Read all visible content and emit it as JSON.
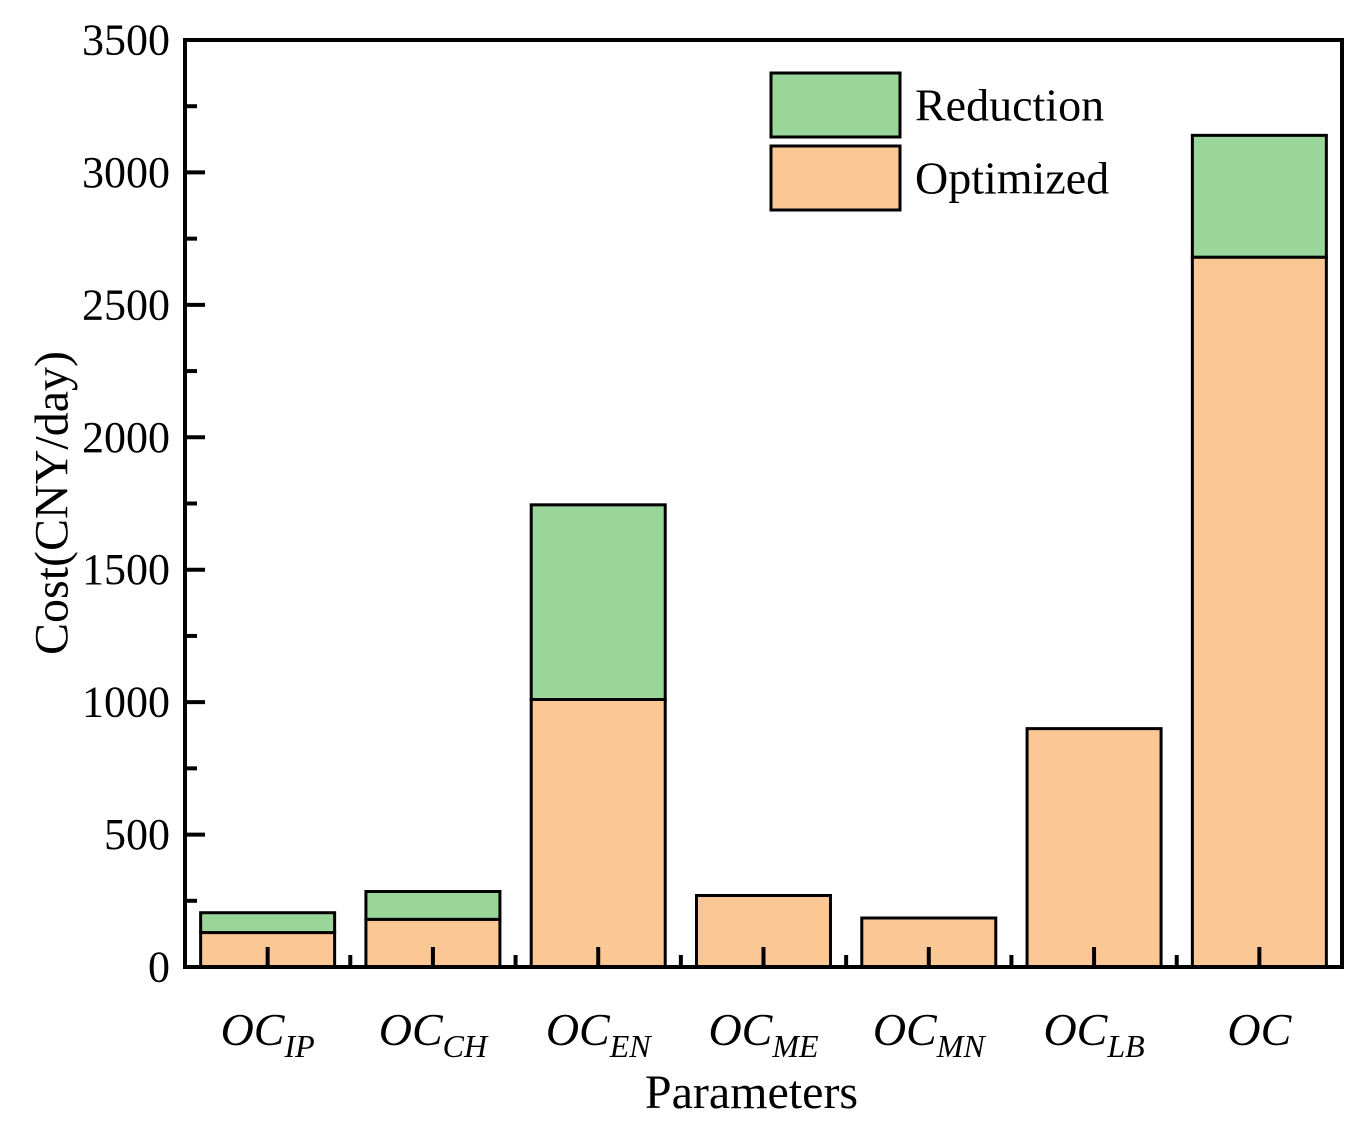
{
  "chart_data": {
    "type": "bar",
    "stacked": true,
    "title": "",
    "xlabel": "Parameters",
    "ylabel": "Cost(CNY/day)",
    "ylim": [
      0,
      3500
    ],
    "y_major_step": 500,
    "y_minor_step": 250,
    "y_tick_labels": [
      "0",
      "500",
      "1000",
      "1500",
      "2000",
      "2500",
      "3000",
      "3500"
    ],
    "grid": "off",
    "categories": [
      {
        "id": "OC_IP",
        "base": "OC",
        "sub": "IP"
      },
      {
        "id": "OC_CH",
        "base": "OC",
        "sub": "CH"
      },
      {
        "id": "OC_EN",
        "base": "OC",
        "sub": "EN"
      },
      {
        "id": "OC_ME",
        "base": "OC",
        "sub": "ME"
      },
      {
        "id": "OC_MN",
        "base": "OC",
        "sub": "MN"
      },
      {
        "id": "OC_LB",
        "base": "OC",
        "sub": "LB"
      },
      {
        "id": "OC",
        "base": "OC",
        "sub": ""
      }
    ],
    "series": [
      {
        "name": "Optimized",
        "color": "#fbc795",
        "values": [
          130,
          180,
          1010,
          270,
          185,
          900,
          2680
        ]
      },
      {
        "name": "Reduction",
        "color": "#9ad59a",
        "values": [
          75,
          105,
          735,
          0,
          0,
          0,
          460
        ]
      }
    ],
    "stack_totals": [
      205,
      285,
      1745,
      270,
      185,
      900,
      3140
    ],
    "legend": {
      "position": "top-right-inside",
      "items": [
        {
          "label": "Reduction",
          "color": "#9ad59a"
        },
        {
          "label": "Optimized",
          "color": "#fbc795"
        }
      ]
    },
    "colors": {
      "bar_border": "#000000",
      "axis": "#000000",
      "text": "#000000",
      "background": "#ffffff"
    }
  }
}
